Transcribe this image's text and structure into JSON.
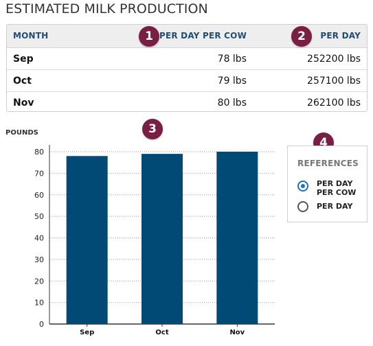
{
  "title": "ESTIMATED MILK PRODUCTION",
  "table": {
    "headers": {
      "month": "MONTH",
      "per_day_per_cow": "PER DAY PER COW",
      "per_day": "PER DAY"
    },
    "rows": [
      {
        "month": "Sep",
        "per_day_per_cow": "78 lbs",
        "per_day": "252200 lbs"
      },
      {
        "month": "Oct",
        "per_day_per_cow": "79 lbs",
        "per_day": "257100 lbs"
      },
      {
        "month": "Nov",
        "per_day_per_cow": "80 lbs",
        "per_day": "262100 lbs"
      }
    ]
  },
  "badges": [
    "1",
    "2",
    "3",
    "4"
  ],
  "references": {
    "title": "REFERENCES",
    "options": [
      {
        "label_line1": "PER DAY",
        "label_line2": "PER COW",
        "selected": true
      },
      {
        "label_line1": "PER DAY",
        "label_line2": "",
        "selected": false
      }
    ]
  },
  "colors": {
    "bar": "#004a75",
    "badge": "#7a1f44",
    "header_text": "#1f4d75",
    "radio_on": "#1a73b8"
  },
  "chart_data": {
    "type": "bar",
    "ylabel": "POUNDS",
    "categories": [
      "Sep",
      "Oct",
      "Nov"
    ],
    "values": [
      78,
      79,
      80
    ],
    "ylim": [
      0,
      80
    ],
    "yticks": [
      0,
      10,
      20,
      30,
      40,
      50,
      60,
      70,
      80
    ],
    "grid": true
  }
}
